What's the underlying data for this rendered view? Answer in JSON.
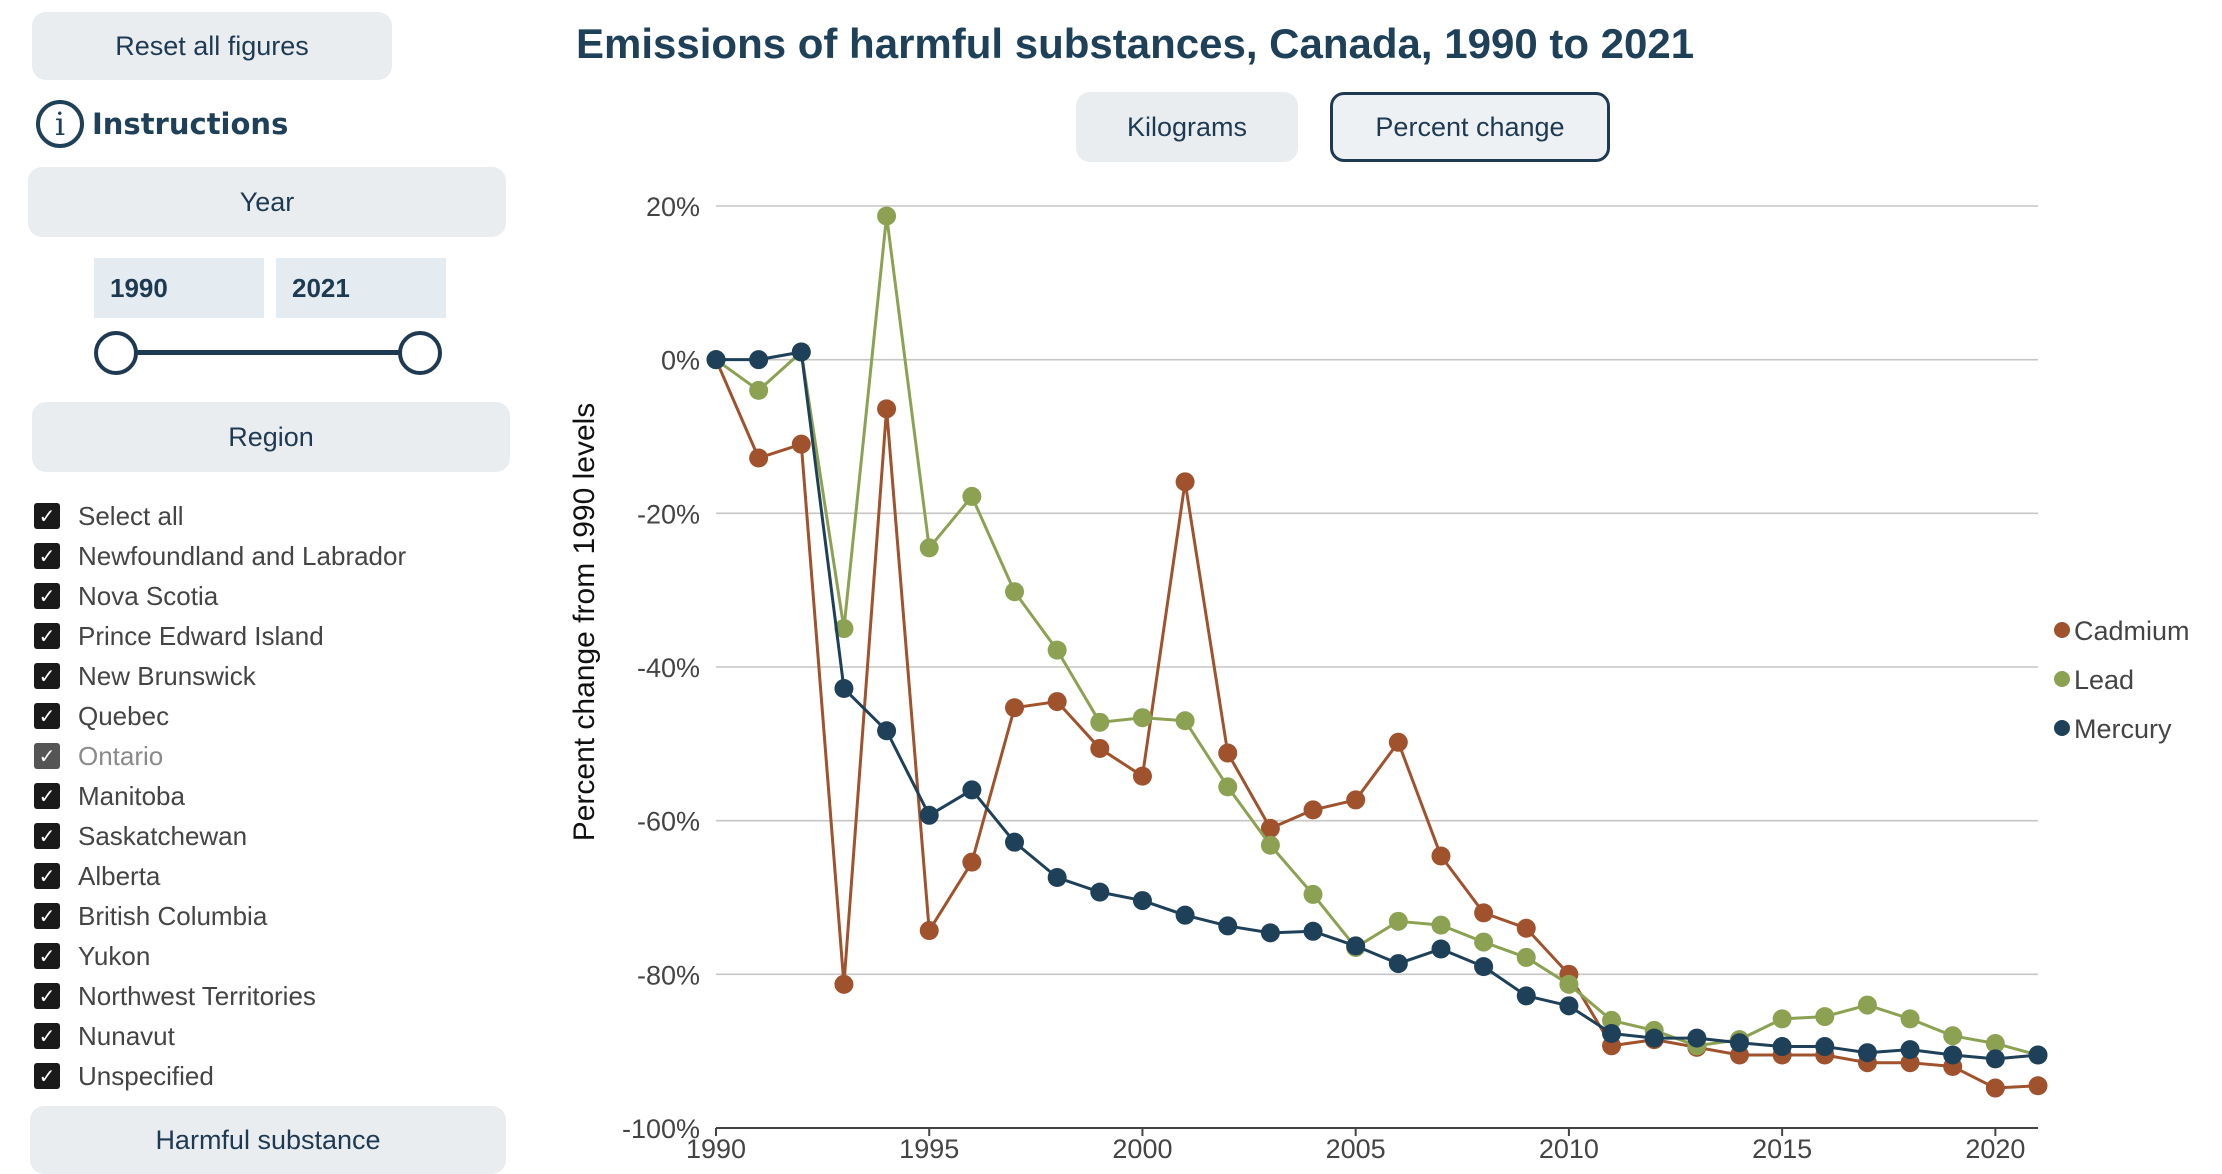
{
  "sidebar": {
    "reset_label": "Reset all figures",
    "instructions_label": "Instructions",
    "year_header": "Year",
    "year_start": "1990",
    "year_end": "2021",
    "region_header": "Region",
    "regions": [
      "Select all",
      "Newfoundland and Labrador",
      "Nova Scotia",
      "Prince Edward Island",
      "New Brunswick",
      "Quebec",
      "Ontario",
      "Manitoba",
      "Saskatchewan",
      "Alberta",
      "British Columbia",
      "Yukon",
      "Northwest Territories",
      "Nunavut",
      "Unspecified"
    ],
    "substance_header": "Harmful substance"
  },
  "toggle": {
    "kilograms_label": "Kilograms",
    "percent_label": "Percent change",
    "selected": "Percent change"
  },
  "chart_data": {
    "type": "line",
    "title": "Emissions of harmful substances, Canada, 1990 to 2021",
    "ylabel": "Percent change from 1990 levels",
    "xlabel": "",
    "x": [
      1990,
      1991,
      1992,
      1993,
      1994,
      1995,
      1996,
      1997,
      1998,
      1999,
      2000,
      2001,
      2002,
      2003,
      2004,
      2005,
      2006,
      2007,
      2008,
      2009,
      2010,
      2011,
      2012,
      2013,
      2014,
      2015,
      2016,
      2017,
      2018,
      2019,
      2020,
      2021
    ],
    "xlim": [
      1990,
      2021
    ],
    "ylim": [
      -100,
      20
    ],
    "x_ticks": [
      "1990",
      "1995",
      "2000",
      "2005",
      "2010",
      "2015",
      "2020"
    ],
    "y_ticks": [
      "20%",
      "0%",
      "-20%",
      "-40%",
      "-60%",
      "-80%",
      "-100%"
    ],
    "grid": true,
    "legend_position": "right",
    "series": [
      {
        "name": "Cadmium",
        "color": "#a0522d",
        "values": [
          0,
          -12.8,
          -11,
          -81.3,
          -6.4,
          -74.3,
          -65.4,
          -45.3,
          -44.5,
          -50.6,
          -54.2,
          -15.9,
          -51.2,
          -61,
          -58.6,
          -57.3,
          -49.8,
          -64.6,
          -72,
          -74,
          -80,
          -89.3,
          -88.5,
          -89.5,
          -90.5,
          -90.5,
          -90.5,
          -91.5,
          -91.5,
          -92,
          -94.8,
          -94.5
        ]
      },
      {
        "name": "Lead",
        "color": "#8ca252",
        "values": [
          0,
          -4,
          1,
          -35,
          18.7,
          -24.5,
          -17.8,
          -30.2,
          -37.8,
          -47.2,
          -46.6,
          -47,
          -55.6,
          -63.2,
          -69.6,
          -76.5,
          -73.1,
          -73.6,
          -75.8,
          -77.8,
          -81.3,
          -86,
          -87.3,
          -89.3,
          -88.5,
          -85.8,
          -85.5,
          -84,
          -85.8,
          -88,
          -89,
          -90.5
        ]
      },
      {
        "name": "Mercury",
        "color": "#1e4159",
        "values": [
          0,
          0,
          1,
          -42.8,
          -48.3,
          -59.3,
          -56,
          -62.8,
          -67.4,
          -69.3,
          -70.4,
          -72.3,
          -73.7,
          -74.6,
          -74.4,
          -76.3,
          -78.6,
          -76.7,
          -79,
          -82.8,
          -84.1,
          -87.7,
          -88.3,
          -88.3,
          -88.9,
          -89.4,
          -89.4,
          -90.2,
          -89.8,
          -90.5,
          -91,
          -90.5
        ]
      }
    ]
  }
}
